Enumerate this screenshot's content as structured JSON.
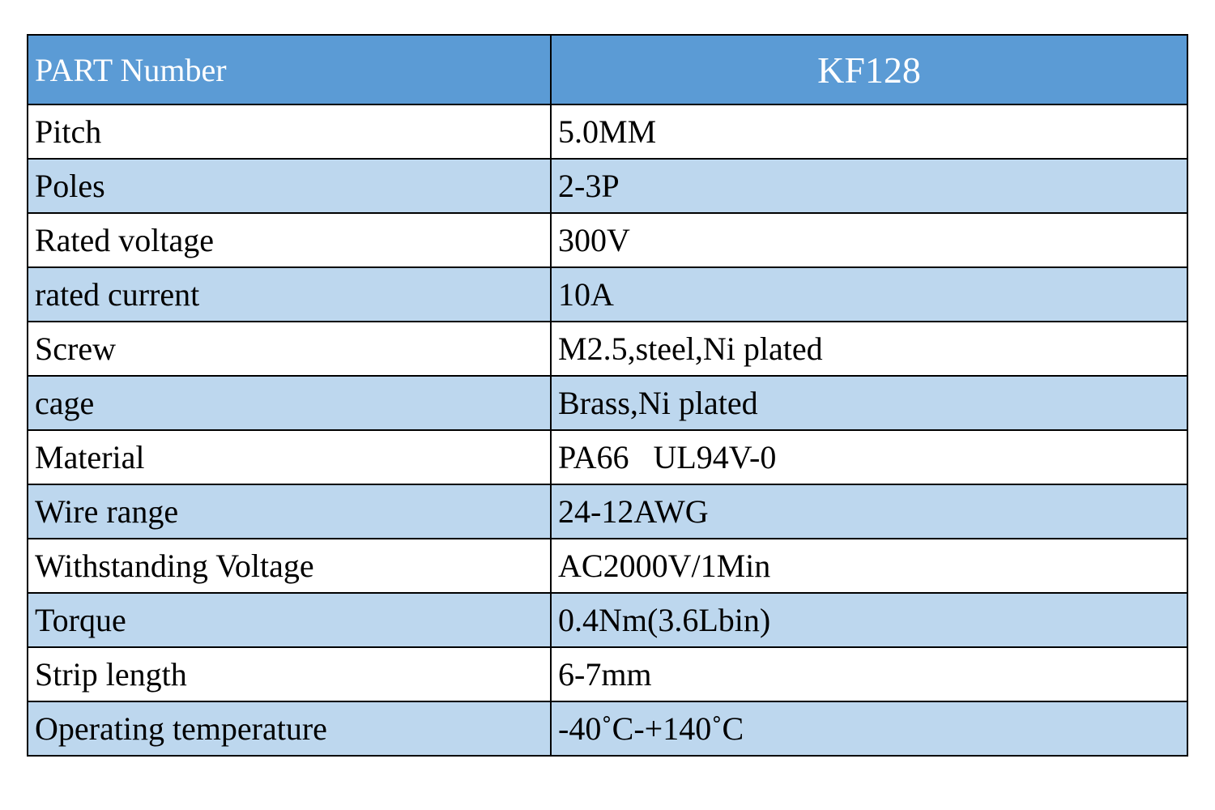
{
  "table": {
    "header": [
      "PART Number",
      "KF128"
    ],
    "rows": [
      [
        "Pitch",
        "5.0MM"
      ],
      [
        "Poles",
        "2-3P"
      ],
      [
        "Rated voltage",
        "300V"
      ],
      [
        "rated current",
        "10A"
      ],
      [
        "Screw",
        "M2.5,steel,Ni plated"
      ],
      [
        "cage",
        "Brass,Ni plated"
      ],
      [
        "Material",
        "PA66   UL94V-0"
      ],
      [
        "Wire range",
        "24-12AWG"
      ],
      [
        "Withstanding Voltage",
        "AC2000V/1Min"
      ],
      [
        "Torque",
        "0.4Nm(3.6Lbin)"
      ],
      [
        "Strip length",
        "6-7mm"
      ],
      [
        "Operating temperature",
        "-40˚C-+140˚C"
      ]
    ]
  }
}
